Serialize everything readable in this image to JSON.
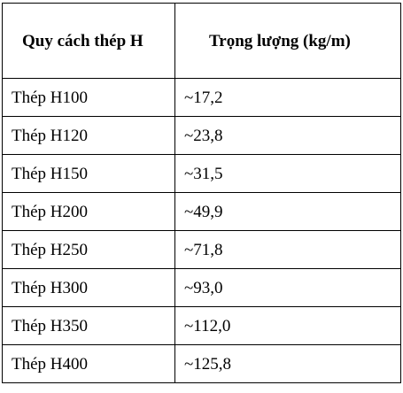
{
  "table": {
    "headers": [
      "Quy cách thép H",
      "Trọng lượng (kg/m)"
    ],
    "rows": [
      [
        "Thép H100",
        "~17,2"
      ],
      [
        "Thép H120",
        "~23,8"
      ],
      [
        "Thép H150",
        "~31,5"
      ],
      [
        "Thép H200",
        "~49,9"
      ],
      [
        "Thép H250",
        "~71,8"
      ],
      [
        "Thép H300",
        "~93,0"
      ],
      [
        "Thép H350",
        "~112,0"
      ],
      [
        "Thép H400",
        "~125,8"
      ]
    ]
  }
}
